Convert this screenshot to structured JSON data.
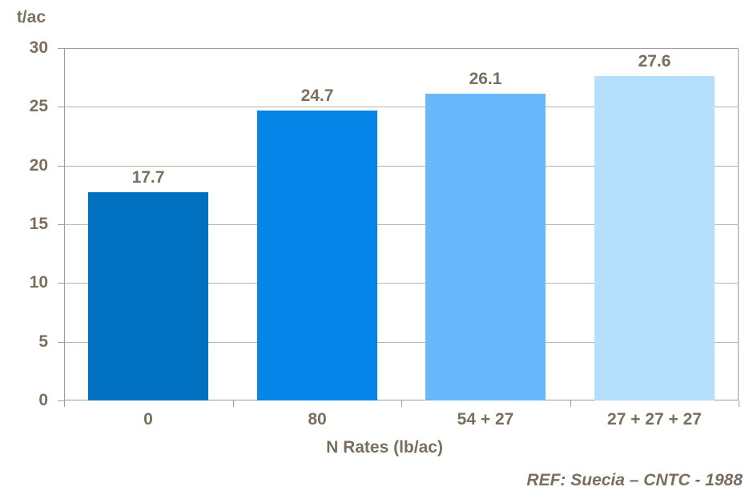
{
  "chart": {
    "unit_label": "t/ac",
    "x_axis_title": "N Rates (lb/ac)"
  },
  "footer": {
    "reference": "REF: Suecia – CNTC - 1988"
  },
  "chart_data": {
    "type": "bar",
    "title": "",
    "unit_label": "t/ac",
    "xlabel": "N Rates (lb/ac)",
    "ylabel": "t/ac",
    "categories": [
      "0",
      "80",
      "54 + 27",
      "27 + 27 + 27"
    ],
    "values": [
      17.7,
      24.7,
      26.1,
      27.6
    ],
    "data_labels": [
      "17.7",
      "24.7",
      "26.1",
      "27.6"
    ],
    "ylim": [
      0,
      30
    ],
    "yticks": [
      0,
      5,
      10,
      15,
      20,
      25,
      30
    ],
    "grid": true,
    "legend": "none",
    "bar_colors": [
      "#0071C1",
      "#0585E8",
      "#68B9FC",
      "#B6DEFD"
    ],
    "annotation": "REF: Suecia – CNTC - 1988"
  },
  "colors": {
    "text": "#7A6F5E",
    "gridline": "#BCB4A8",
    "axis": "#A49C90",
    "background": "#FFFFFF"
  }
}
